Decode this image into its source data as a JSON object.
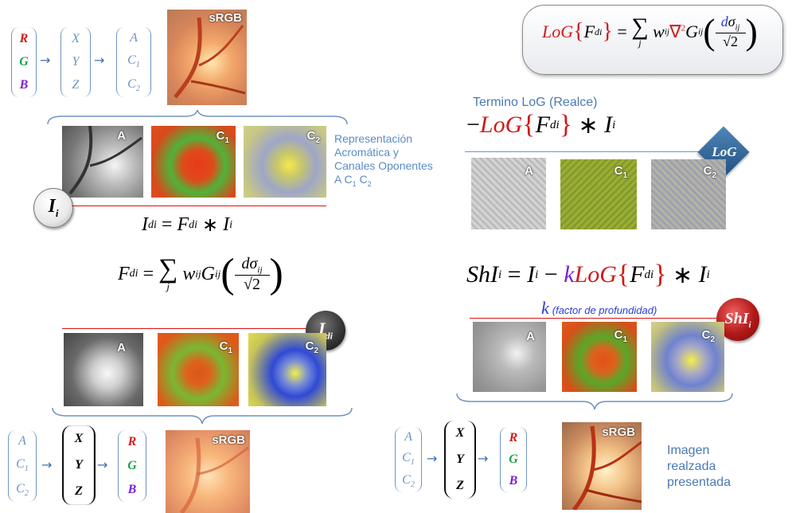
{
  "images": {
    "srgb": "sRGB",
    "a": "A",
    "c1": "C",
    "c2": "C",
    "sub1": "1",
    "sub2": "2"
  },
  "vectors": {
    "rgb": [
      "R",
      "G",
      "B"
    ],
    "xyz": [
      "X",
      "Y",
      "Z"
    ],
    "ac": [
      "A",
      "C",
      "C"
    ]
  },
  "left": {
    "caption_lines": [
      "Representación",
      "Acromática y",
      "Canales Oponentes",
      "A C"
    ],
    "caption_sub": [
      "1",
      "2"
    ],
    "badge_i": "I",
    "badge_i_sub": "i",
    "badge_idi": "I",
    "badge_idi_sub": "di"
  },
  "right": {
    "log_title": "Termino LoG (Realce)",
    "log_badge": "LoG",
    "shi_badge": "ShI",
    "shi_badge_sub": "i",
    "k_note": "(factor de profundidad)",
    "k_symbol": "k",
    "result_lines": [
      "Imagen",
      "realzada",
      "presentada"
    ]
  },
  "colors": {
    "accent_blue": "#4a7ab4",
    "red": "#d11a1a",
    "green": "#1aa34a",
    "purple": "#7a1fd6"
  }
}
